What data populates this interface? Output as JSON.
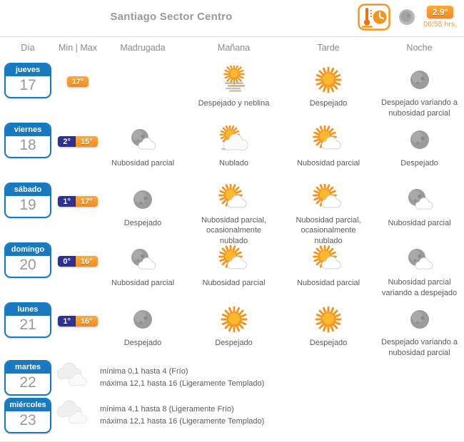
{
  "header": {
    "title": "Santiago Sector Centro",
    "current_temp": "2.9°",
    "current_time": "06:55 hrs."
  },
  "columns": [
    "Día",
    "Min | Max",
    "Madrugada",
    "Mañana",
    "Tarde",
    "Noche"
  ],
  "colors": {
    "accent_orange": "#F7941E",
    "calendar_blue": "#1879C0",
    "min_badge_navy": "#2E3092",
    "max_badge_orange": "#F68B1F"
  },
  "rows": [
    {
      "day_name": "jueves",
      "day_num": "17",
      "min": "",
      "max": "17°",
      "periods": [
        {
          "icon": "none",
          "label": ""
        },
        {
          "icon": "sun-fog",
          "label": "Despejado y neblina"
        },
        {
          "icon": "sun",
          "label": "Despejado"
        },
        {
          "icon": "moon",
          "label": "Despejado variando a nubosidad parcial"
        }
      ]
    },
    {
      "day_name": "viernes",
      "day_num": "18",
      "min": "2°",
      "max": "15°",
      "periods": [
        {
          "icon": "moon-cloud",
          "label": "Nubosidad parcial"
        },
        {
          "icon": "sun-big-cloud",
          "label": "Nublado"
        },
        {
          "icon": "sun-cloud",
          "label": "Nubosidad parcial"
        },
        {
          "icon": "moon",
          "label": "Despejado"
        }
      ]
    },
    {
      "day_name": "sábado",
      "day_num": "19",
      "min": "1°",
      "max": "17°",
      "periods": [
        {
          "icon": "moon",
          "label": "Despejado"
        },
        {
          "icon": "sun-cloud",
          "label": "Nubosidad parcial, ocasionalmente nublado"
        },
        {
          "icon": "sun-cloud",
          "label": "Nubosidad parcial, ocasionalmente nublado"
        },
        {
          "icon": "moon-cloud",
          "label": "Nubosidad parcial"
        }
      ]
    },
    {
      "day_name": "domingo",
      "day_num": "20",
      "min": "0°",
      "max": "16°",
      "periods": [
        {
          "icon": "moon-cloud",
          "label": "Nubosidad parcial"
        },
        {
          "icon": "sun-cloud",
          "label": "Nubosidad parcial"
        },
        {
          "icon": "sun-cloud",
          "label": "Nubosidad parcial"
        },
        {
          "icon": "moon-cloud",
          "label": "Nubosidad parcial variando a despejado"
        }
      ]
    },
    {
      "day_name": "lunes",
      "day_num": "21",
      "min": "1°",
      "max": "16°",
      "periods": [
        {
          "icon": "moon",
          "label": "Despejado"
        },
        {
          "icon": "sun",
          "label": "Despejado"
        },
        {
          "icon": "sun",
          "label": "Despejado"
        },
        {
          "icon": "moon",
          "label": "Despejado variando a nubosidad parcial"
        }
      ]
    }
  ],
  "extended_rows": [
    {
      "day_name": "martes",
      "day_num": "22",
      "icon": "clouds",
      "line1": "mínima 0,1 hasta 4 (Frío)",
      "line2": "máxima 12,1 hasta 16 (Ligeramente Templado)"
    },
    {
      "day_name": "miércoles",
      "day_num": "23",
      "icon": "clouds",
      "line1": "mínima 4,1 hasta 8 (Ligeramente Frío)",
      "line2": "máxima 12,1 hasta 16 (Ligeramente Templado)"
    }
  ]
}
